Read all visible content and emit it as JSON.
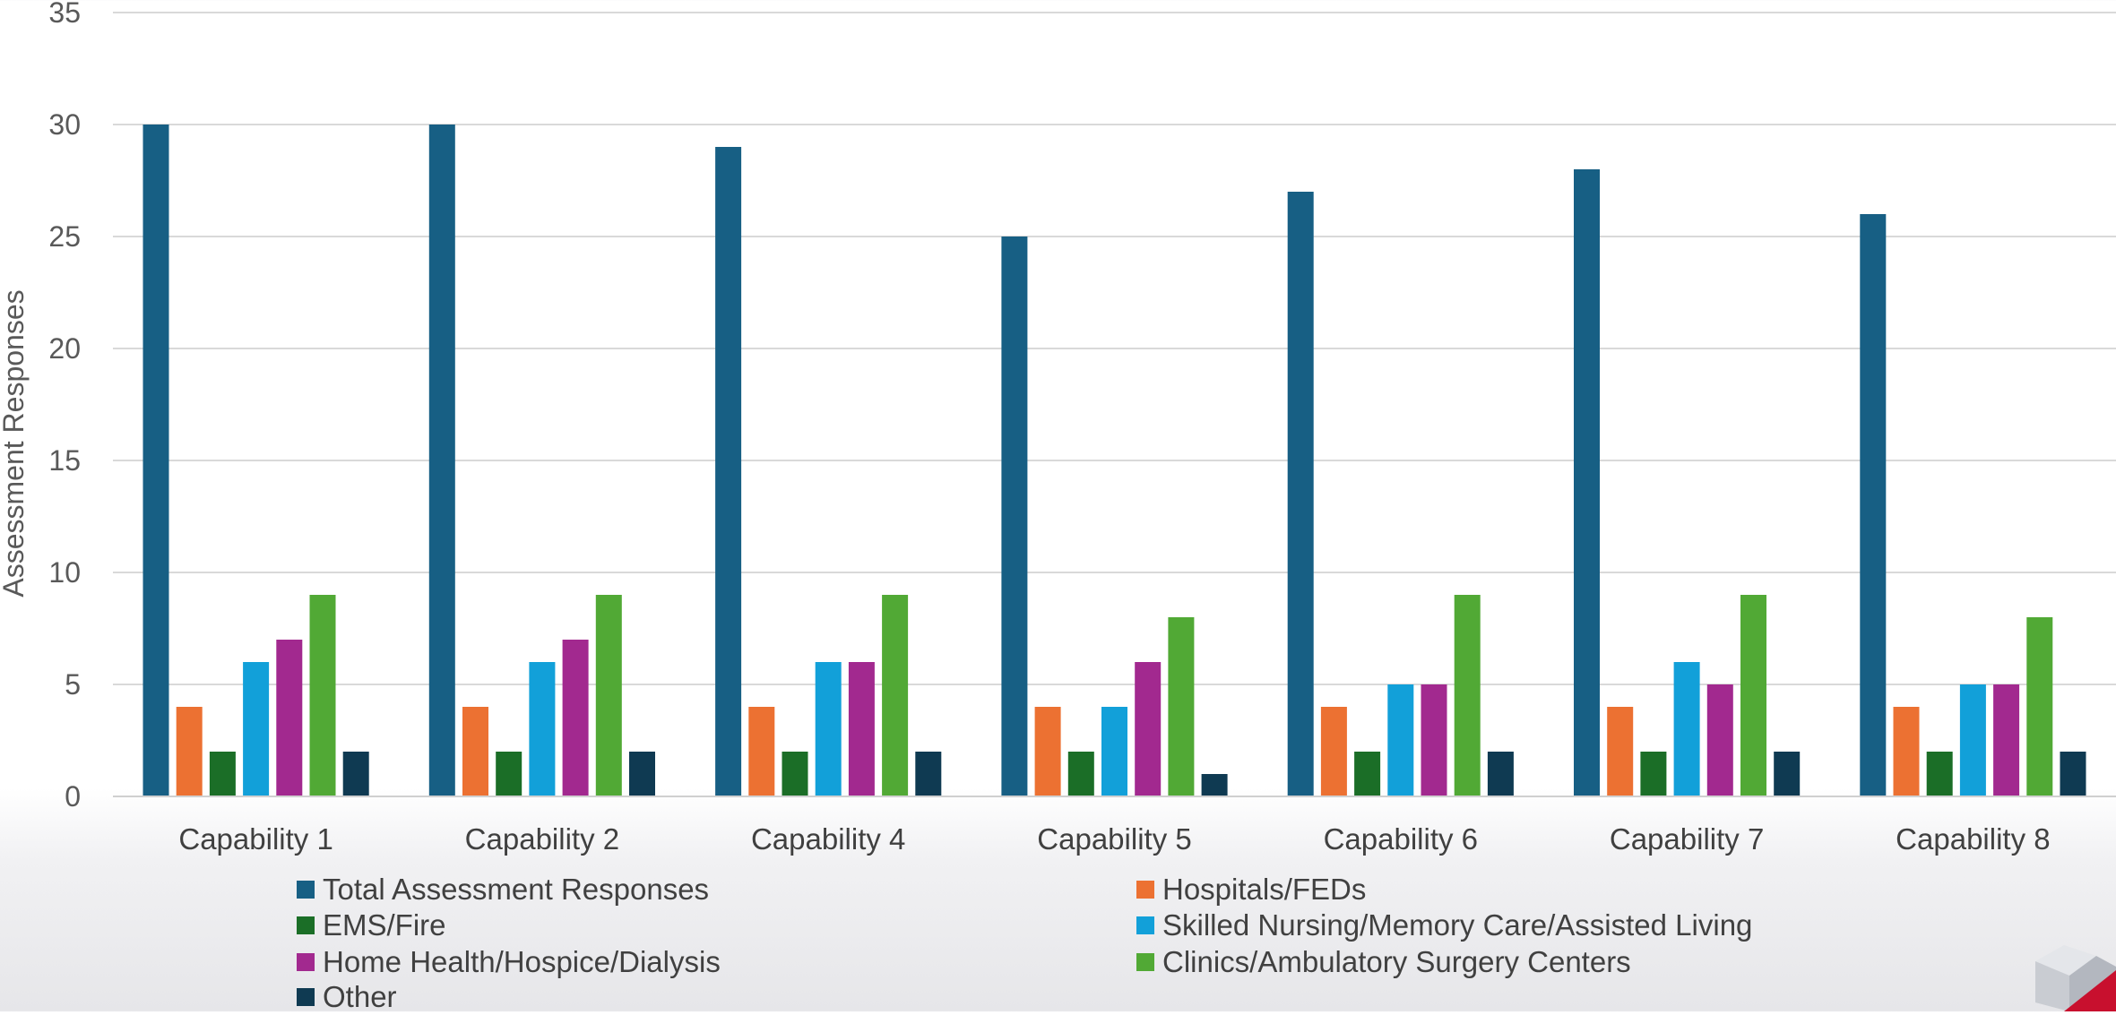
{
  "chart_data": {
    "type": "bar",
    "categories": [
      "Capability 1",
      "Capability 2",
      "Capability 4",
      "Capability 5",
      "Capability 6",
      "Capability 7",
      "Capability 8"
    ],
    "series": [
      {
        "name": "Total Assessment Responses",
        "color": "#175f84",
        "values": [
          30,
          30,
          29,
          25,
          27,
          28,
          26
        ]
      },
      {
        "name": "Hospitals/FEDs",
        "color": "#ec7132",
        "values": [
          4,
          4,
          4,
          4,
          4,
          4,
          4
        ]
      },
      {
        "name": "EMS/Fire",
        "color": "#1b6e27",
        "values": [
          2,
          2,
          2,
          2,
          2,
          2,
          2
        ]
      },
      {
        "name": "Skilled Nursing/Memory Care/Assisted Living",
        "color": "#12a0d9",
        "values": [
          6,
          6,
          6,
          4,
          5,
          6,
          5
        ]
      },
      {
        "name": "Home Health/Hospice/Dialysis",
        "color": "#a2298f",
        "values": [
          7,
          7,
          6,
          6,
          5,
          5,
          5
        ]
      },
      {
        "name": "Clinics/Ambulatory Surgery Centers",
        "color": "#51a935",
        "values": [
          9,
          9,
          9,
          8,
          9,
          9,
          8
        ]
      },
      {
        "name": "Other",
        "color": "#0f3a52",
        "values": [
          2,
          2,
          2,
          1,
          2,
          2,
          2
        ]
      }
    ],
    "ylabel": "Assessment Responses",
    "xlabel": "",
    "ylim": [
      0,
      35
    ],
    "yticks": [
      0,
      5,
      10,
      15,
      20,
      25,
      30,
      35
    ],
    "grid": true,
    "legend_position": "bottom"
  }
}
